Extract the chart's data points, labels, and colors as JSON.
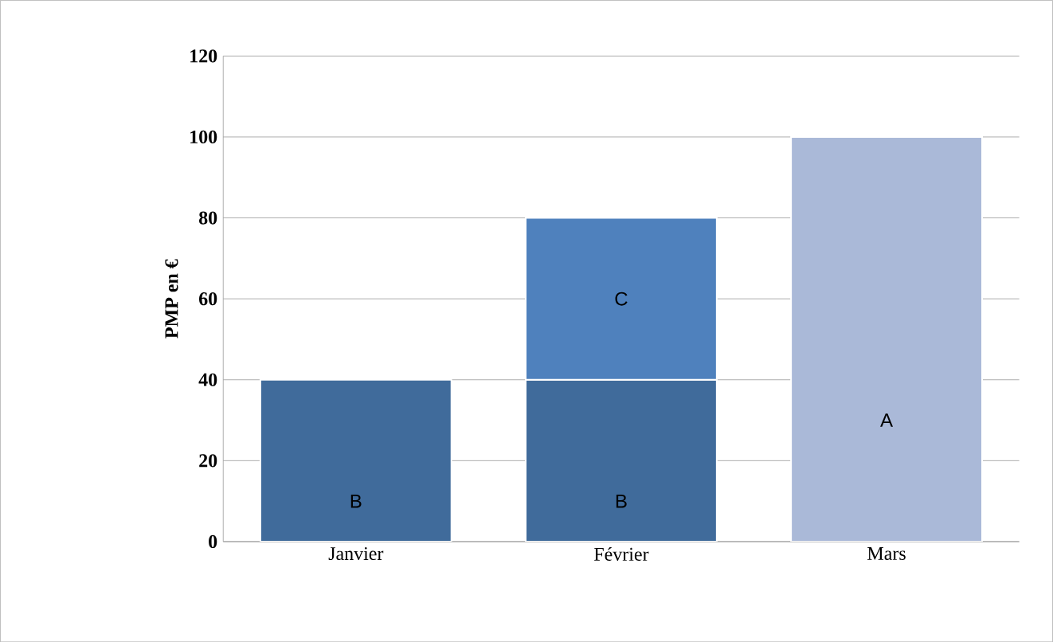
{
  "chart_data": {
    "type": "bar",
    "stacked": true,
    "ylabel": "PMP en €",
    "categories": [
      "Janvier",
      "Février",
      "Mars"
    ],
    "series": [
      {
        "name": "B",
        "color": "#406b9b",
        "values": [
          40,
          40,
          null
        ]
      },
      {
        "name": "C",
        "color": "#4f81bd",
        "values": [
          null,
          40,
          null
        ]
      },
      {
        "name": "A",
        "color": "#aab9d8",
        "values": [
          null,
          null,
          100
        ]
      }
    ],
    "ylim": [
      0,
      120
    ],
    "yticks": [
      0,
      20,
      40,
      60,
      80,
      100,
      120
    ],
    "grid": "y",
    "legend": false
  }
}
